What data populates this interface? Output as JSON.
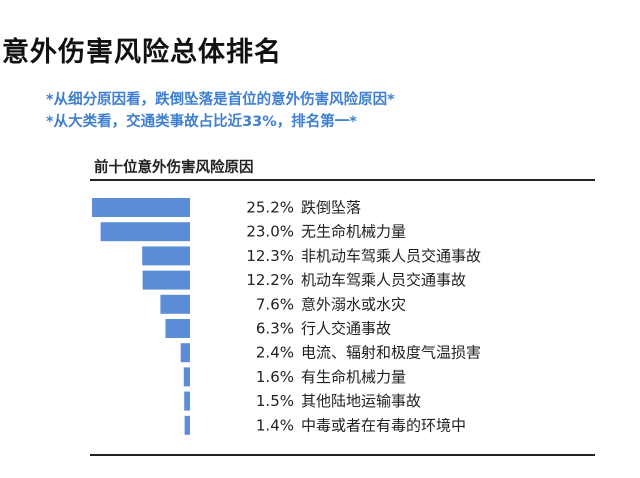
{
  "title": "意外伤害风险总体排名",
  "notes": [
    "*从细分原因看，跌倒坠落是首位的意外伤害风险原因*",
    "*从大类看，交通类事故占比近33%，排名第一*"
  ],
  "colors": {
    "bar": "#5b8ed6",
    "note": "#3e7fd1",
    "text": "#222222"
  },
  "chart_data": {
    "type": "bar",
    "orientation": "horizontal",
    "title": "前十位意外伤害风险原因",
    "categories": [
      "跌倒坠落",
      "无生命机械力量",
      "非机动车驾乘人员交通事故",
      "机动车驾乘人员交通事故",
      "意外溺水或水灾",
      "行人交通事故",
      "电流、辐射和极度气温损害",
      "有生命机械力量",
      "其他陆地运输事故",
      "中毒或者在有毒的环境中"
    ],
    "values": [
      25.2,
      23.0,
      12.3,
      12.2,
      7.6,
      6.3,
      2.4,
      1.6,
      1.5,
      1.4
    ],
    "value_labels": [
      "25.2%",
      "23.0%",
      "12.3%",
      "12.2%",
      "7.6%",
      "6.3%",
      "2.4%",
      "1.6%",
      "1.5%",
      "1.4%"
    ],
    "bar_alignment": "right",
    "xlim": [
      0,
      25.2
    ]
  }
}
